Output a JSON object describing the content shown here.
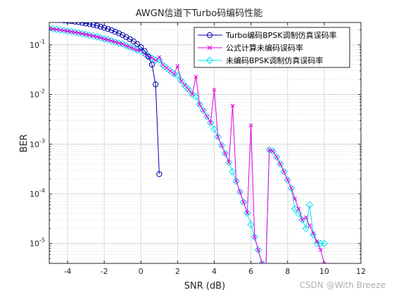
{
  "chart_data": {
    "type": "line",
    "title": "AWGN信道下Turbo码编码性能",
    "xlabel": "SNR (dB)",
    "ylabel": "BER",
    "xlim": [
      -5,
      12
    ],
    "ylim_log10": [
      -5.4,
      -0.55
    ],
    "yscale": "log",
    "grid": "on (major and minor)",
    "legend_position": "top-right",
    "x_ticks": [
      -4,
      -2,
      0,
      2,
      4,
      6,
      8,
      10,
      12
    ],
    "x_tick_labels": [
      "-4",
      "-2",
      "0",
      "2",
      "4",
      "6",
      "8",
      "10",
      "12"
    ],
    "y_ticks_exponent": [
      -5,
      -4,
      -3,
      -2,
      -1
    ],
    "y_tick_base": "10",
    "series": [
      {
        "name": "Turbo编码BPSK调制仿真误码率",
        "color": "#0000aa",
        "marker": "circle",
        "x": [
          -5.0,
          -4.8,
          -4.6,
          -4.4,
          -4.2,
          -4.0,
          -3.8,
          -3.6,
          -3.4,
          -3.2,
          -3.0,
          -2.8,
          -2.6,
          -2.4,
          -2.2,
          -2.0,
          -1.8,
          -1.6,
          -1.4,
          -1.2,
          -1.0,
          -0.8,
          -0.6,
          -0.4,
          -0.2,
          0.0,
          0.2,
          0.4,
          0.6,
          0.8,
          1.0
        ],
        "y": [
          0.33,
          0.325,
          0.32,
          0.315,
          0.31,
          0.305,
          0.3,
          0.293,
          0.286,
          0.278,
          0.27,
          0.262,
          0.253,
          0.243,
          0.232,
          0.221,
          0.209,
          0.196,
          0.183,
          0.17,
          0.157,
          0.143,
          0.13,
          0.117,
          0.104,
          0.09,
          0.075,
          0.058,
          0.04,
          0.016,
          0.00025
        ]
      },
      {
        "name": "公式计算未编码误码率",
        "color": "#dd00dd",
        "marker": "x",
        "x": [
          -5.0,
          -4.8,
          -4.6,
          -4.4,
          -4.2,
          -4.0,
          -3.8,
          -3.6,
          -3.4,
          -3.2,
          -3.0,
          -2.8,
          -2.6,
          -2.4,
          -2.2,
          -2.0,
          -1.8,
          -1.6,
          -1.4,
          -1.2,
          -1.0,
          -0.8,
          -0.6,
          -0.4,
          -0.2,
          0.0,
          0.2,
          0.4,
          0.6,
          0.8,
          1.0,
          1.2,
          1.4,
          1.6,
          1.8,
          2.0,
          2.2,
          2.4,
          2.6,
          2.8,
          3.0,
          3.2,
          3.4,
          3.6,
          3.8,
          4.0,
          4.2,
          4.4,
          4.6,
          4.8,
          5.0,
          5.2,
          5.4,
          5.6,
          5.8,
          6.0,
          6.2,
          6.4,
          6.6,
          6.8,
          7.0,
          7.2,
          7.4,
          7.6,
          7.8,
          8.0,
          8.2,
          8.4,
          8.6,
          8.8,
          9.0,
          9.2,
          9.4,
          9.6,
          9.8,
          10.0
        ],
        "y": [
          0.2132,
          0.2086,
          0.2039,
          0.1991,
          0.1942,
          0.1891,
          0.1839,
          0.1786,
          0.1732,
          0.1677,
          0.1621,
          0.1564,
          0.1505,
          0.1446,
          0.1387,
          0.1306,
          0.1265,
          0.1204,
          0.1143,
          0.1081,
          0.1039,
          0.0957,
          0.0896,
          0.0836,
          0.0775,
          0.0786,
          0.0657,
          0.06,
          0.0544,
          0.049,
          0.0563,
          0.0389,
          0.0342,
          0.0298,
          0.0257,
          0.0375,
          0.0185,
          0.0154,
          0.0126,
          0.0101,
          0.0229,
          0.0063,
          0.0048,
          0.0036,
          0.0027,
          0.0125,
          0.0014,
          0.00095,
          0.00065,
          0.00043,
          0.00595,
          0.00018,
          0.00011,
          6.8e-05,
          4.1e-05,
          0.00239,
          1.35e-05,
          7.4e-06,
          4e-06,
          2.1e-06,
          0.000773,
          0.00072,
          0.00055,
          0.0004,
          0.00028,
          0.000191,
          0.00013,
          8e-05,
          5e-05,
          3e-05,
          3.36e-05,
          2.3e-05,
          1.6e-05,
          1.1e-05,
          7.5e-06,
          3.9e-06
        ]
      },
      {
        "name": "未编码BPSK调制仿真误码率",
        "color": "#00e5ee",
        "marker": "diamond",
        "x": [
          -5.0,
          -4.8,
          -4.6,
          -4.4,
          -4.2,
          -4.0,
          -3.8,
          -3.6,
          -3.4,
          -3.2,
          -3.0,
          -2.8,
          -2.6,
          -2.4,
          -2.2,
          -2.0,
          -1.8,
          -1.6,
          -1.4,
          -1.2,
          -1.0,
          -0.8,
          -0.6,
          -0.4,
          -0.2,
          0.0,
          0.2,
          0.4,
          0.6,
          0.8,
          1.0,
          1.2,
          1.4,
          1.6,
          1.8,
          2.0,
          2.2,
          2.4,
          2.6,
          2.8,
          3.0,
          3.2,
          3.4,
          3.6,
          3.8,
          4.0,
          4.2,
          4.4,
          4.6,
          4.8,
          5.0,
          5.2,
          5.4,
          5.6,
          5.8,
          6.0,
          6.2,
          6.4,
          6.6,
          6.8,
          7.0,
          7.2,
          7.4,
          7.6,
          7.8,
          8.0,
          8.2,
          8.4,
          8.6,
          8.8,
          9.0,
          9.2,
          9.4,
          9.6,
          9.8,
          10.0
        ],
        "y": [
          0.213,
          0.208,
          0.204,
          0.199,
          0.194,
          0.189,
          0.184,
          0.179,
          0.173,
          0.168,
          0.162,
          0.156,
          0.151,
          0.145,
          0.139,
          0.131,
          0.127,
          0.121,
          0.114,
          0.108,
          0.104,
          0.096,
          0.09,
          0.084,
          0.078,
          0.075,
          0.066,
          0.06,
          0.054,
          0.049,
          0.05,
          0.039,
          0.034,
          0.03,
          0.026,
          0.024,
          0.019,
          0.015,
          0.0126,
          0.0101,
          0.009,
          0.0063,
          0.0048,
          0.0036,
          0.0027,
          0.002,
          0.0014,
          0.00095,
          0.00065,
          0.00043,
          0.00028,
          0.00018,
          0.00011,
          6.8e-05,
          4.1e-05,
          2.4e-05,
          1.35e-05,
          7.4e-06,
          4e-06,
          2.1e-06,
          0.000773,
          0.00072,
          0.00055,
          0.0004,
          0.00028,
          0.00019,
          0.00013,
          5e-05,
          4e-05,
          3e-05,
          2e-05,
          6e-05,
          1.5e-05,
          1e-05,
          1e-05,
          1e-05
        ]
      }
    ]
  },
  "watermark": "CSDN @With Breeze"
}
